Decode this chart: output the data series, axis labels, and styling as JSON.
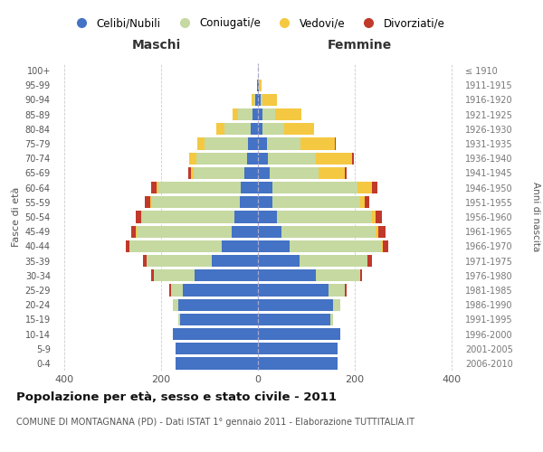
{
  "age_groups": [
    "0-4",
    "5-9",
    "10-14",
    "15-19",
    "20-24",
    "25-29",
    "30-34",
    "35-39",
    "40-44",
    "45-49",
    "50-54",
    "55-59",
    "60-64",
    "65-69",
    "70-74",
    "75-79",
    "80-84",
    "85-89",
    "90-94",
    "95-99",
    "100+"
  ],
  "birth_years": [
    "2006-2010",
    "2001-2005",
    "1996-2000",
    "1991-1995",
    "1986-1990",
    "1981-1985",
    "1976-1980",
    "1971-1975",
    "1966-1970",
    "1961-1965",
    "1956-1960",
    "1951-1955",
    "1946-1950",
    "1941-1945",
    "1936-1940",
    "1931-1935",
    "1926-1930",
    "1921-1925",
    "1916-1920",
    "1911-1915",
    "≤ 1910"
  ],
  "male": {
    "celibi": [
      170,
      170,
      175,
      160,
      165,
      155,
      130,
      95,
      75,
      55,
      48,
      38,
      35,
      28,
      22,
      20,
      15,
      12,
      5,
      2,
      0
    ],
    "coniugati": [
      0,
      0,
      0,
      5,
      10,
      25,
      85,
      135,
      190,
      195,
      190,
      180,
      170,
      105,
      105,
      90,
      55,
      30,
      3,
      0,
      0
    ],
    "vedovi": [
      0,
      0,
      0,
      0,
      0,
      0,
      0,
      0,
      0,
      2,
      2,
      5,
      5,
      5,
      15,
      15,
      15,
      10,
      5,
      0,
      0
    ],
    "divorziati": [
      0,
      0,
      0,
      0,
      0,
      2,
      5,
      8,
      8,
      10,
      12,
      10,
      10,
      5,
      0,
      0,
      0,
      0,
      0,
      0,
      0
    ]
  },
  "female": {
    "nubili": [
      165,
      165,
      170,
      150,
      155,
      145,
      120,
      85,
      65,
      48,
      40,
      30,
      30,
      25,
      20,
      18,
      10,
      10,
      5,
      2,
      0
    ],
    "coniugate": [
      0,
      0,
      0,
      5,
      15,
      35,
      90,
      140,
      190,
      195,
      195,
      180,
      175,
      100,
      100,
      70,
      45,
      25,
      5,
      0,
      0
    ],
    "vedove": [
      0,
      0,
      0,
      0,
      0,
      0,
      0,
      0,
      2,
      5,
      8,
      10,
      30,
      55,
      75,
      70,
      60,
      55,
      30,
      5,
      0
    ],
    "divorziate": [
      0,
      0,
      0,
      0,
      0,
      2,
      5,
      10,
      12,
      15,
      12,
      10,
      12,
      2,
      2,
      2,
      0,
      0,
      0,
      0,
      0
    ]
  },
  "colors": {
    "celibi": "#4472C4",
    "coniugati": "#c5d9a0",
    "vedovi": "#f5c842",
    "divorziati": "#c0392b"
  },
  "title": "Popolazione per età, sesso e stato civile - 2011",
  "subtitle": "COMUNE DI MONTAGNANA (PD) - Dati ISTAT 1° gennaio 2011 - Elaborazione TUTTITALIA.IT",
  "xlabel_left": "Maschi",
  "xlabel_right": "Femmine",
  "ylabel_left": "Fasce di età",
  "ylabel_right": "Anni di nascita",
  "xlim": 420,
  "legend_labels": [
    "Celibi/Nubili",
    "Coniugati/e",
    "Vedovi/e",
    "Divorziati/e"
  ],
  "background_color": "#ffffff"
}
